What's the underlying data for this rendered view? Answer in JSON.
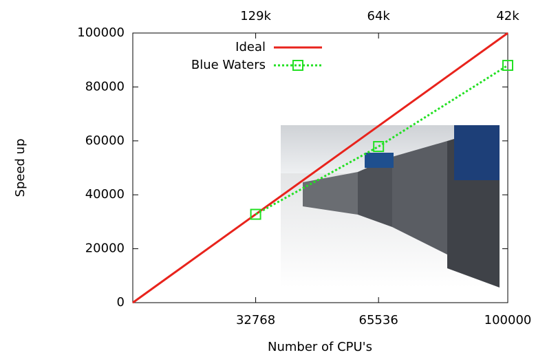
{
  "chart_data": {
    "type": "line",
    "x_label": "Number of CPU's",
    "y_label": "Speed up",
    "xlim": [
      0,
      100000
    ],
    "ylim": [
      0,
      100000
    ],
    "xticks": [
      32768,
      65536,
      100000
    ],
    "yticks": [
      0,
      20000,
      40000,
      60000,
      80000,
      100000
    ],
    "x2ticks": [
      {
        "value": 32768,
        "label": "129k"
      },
      {
        "value": 65536,
        "label": "64k"
      },
      {
        "value": 100000,
        "label": "42k"
      }
    ],
    "grid": false,
    "legend": "upper right",
    "series": [
      {
        "name": "Ideal",
        "color": "#e8231c",
        "dash": "solid",
        "marker": "none",
        "x": [
          0,
          100000
        ],
        "values": [
          0,
          100000
        ]
      },
      {
        "name": "Blue Waters",
        "color": "#22e022",
        "dash": "dotted",
        "marker": "square",
        "x": [
          32768,
          65536,
          100000
        ],
        "values": [
          32768,
          57900,
          88000
        ]
      }
    ]
  }
}
